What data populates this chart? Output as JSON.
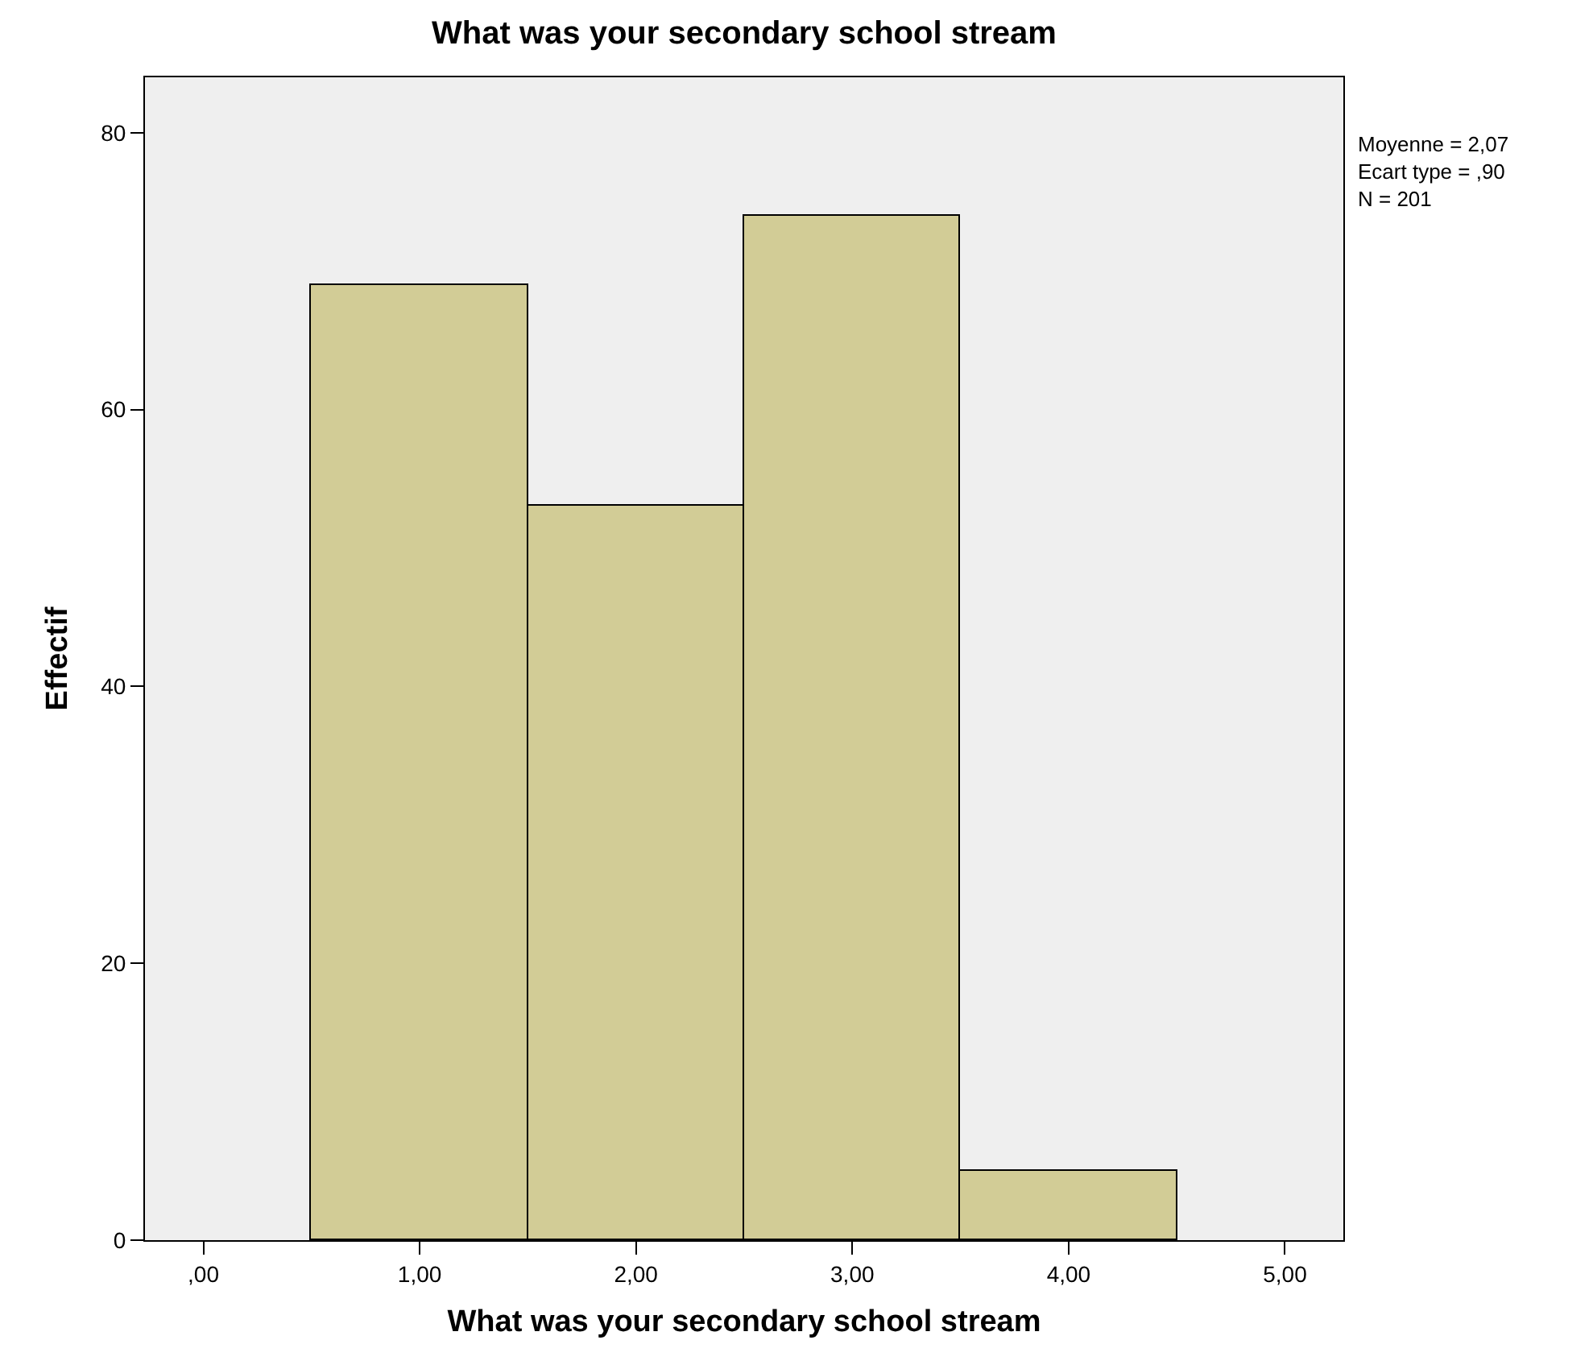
{
  "chart_data": {
    "type": "histogram",
    "title": "What was your secondary school stream",
    "xlabel": "What was your secondary school stream",
    "ylabel": "Effectif",
    "bins": [
      0.5,
      1.5,
      2.5,
      3.5,
      4.5
    ],
    "values": [
      69,
      53,
      74,
      5
    ],
    "color": "#d2cc96",
    "xlim": [
      -0.27,
      5.27
    ],
    "xticks": [
      {
        "value": 0,
        "label": ",00"
      },
      {
        "value": 1,
        "label": "1,00"
      },
      {
        "value": 2,
        "label": "2,00"
      },
      {
        "value": 3,
        "label": "3,00"
      },
      {
        "value": 4,
        "label": "4,00"
      },
      {
        "value": 5,
        "label": "5,00"
      }
    ],
    "ylim": [
      0,
      84
    ],
    "yticks": [
      0,
      20,
      40,
      60,
      80
    ],
    "grid": false,
    "legend": false,
    "annotations": [
      "Moyenne = 2,07\nEcart type = ,90\nN = 201"
    ]
  }
}
